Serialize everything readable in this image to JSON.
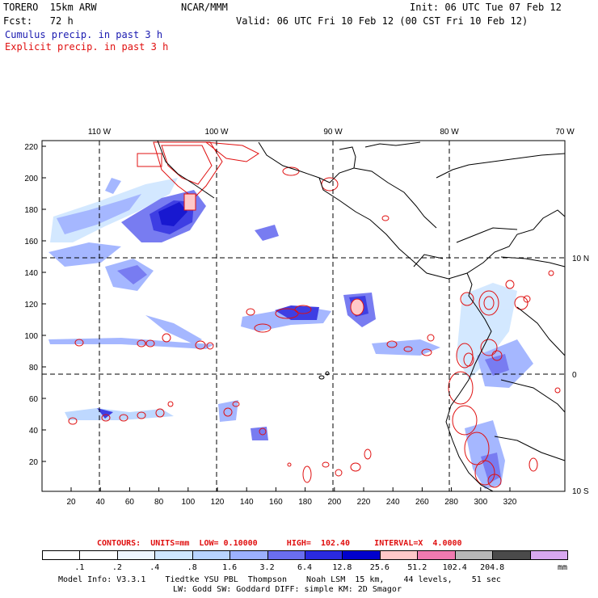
{
  "header": {
    "model": "TORERO  15km ARW",
    "producer": "NCAR/MMM",
    "init": "Init: 06 UTC Tue 07 Feb 12",
    "fcst": "Fcst:   72 h",
    "valid": "Valid: 06 UTC Fri 10 Feb 12 (00 CST Fri 10 Feb 12)",
    "field1": "Cumulus precip. in past 3 h",
    "field2": "Explicit precip. in past 3 h"
  },
  "colors": {
    "field1": "#1a1ab0",
    "field2": "#e01010",
    "coast": "#000000",
    "grid": "#000000"
  },
  "map": {
    "lon_labels": [
      "110 W",
      "100 W",
      "90 W",
      "80 W",
      "70 W"
    ],
    "lat_labels": [
      "10 N",
      "0",
      "10 S"
    ],
    "y_ticks": [
      "220",
      "200",
      "180",
      "160",
      "140",
      "120",
      "100",
      "80",
      "60",
      "40",
      "20"
    ],
    "x_ticks": [
      "20",
      "40",
      "60",
      "80",
      "100",
      "120",
      "140",
      "160",
      "180",
      "200",
      "220",
      "240",
      "260",
      "280",
      "300",
      "320"
    ]
  },
  "contour_info": "CONTOURS:  UNITS=mm  LOW= 0.10000      HIGH=  102.40     INTERVAL=X  4.0000",
  "colorbar": {
    "labels": [
      ".1",
      ".2",
      ".4",
      ".8",
      "1.6",
      "3.2",
      "6.4",
      "12.8",
      "25.6",
      "51.2",
      "102.4",
      "204.8"
    ],
    "unit": "mm",
    "colors": [
      "#ffffff",
      "#ffffff",
      "#eef6ff",
      "#cfe6ff",
      "#b8d4ff",
      "#9cb0ff",
      "#6a6ef0",
      "#2a2ae0",
      "#0000cc",
      "#ffc8c8",
      "#f07ab0",
      "#b8b8b8",
      "#4a4a4a",
      "#d8a8f0"
    ]
  },
  "footer": {
    "line1": "Model Info: V3.3.1    Tiedtke YSU PBL  Thompson    Noah LSM  15 km,    44 levels,    51 sec",
    "line2": "LW: Godd SW: Goddard DIFF: simple KM: 2D Smagor"
  }
}
